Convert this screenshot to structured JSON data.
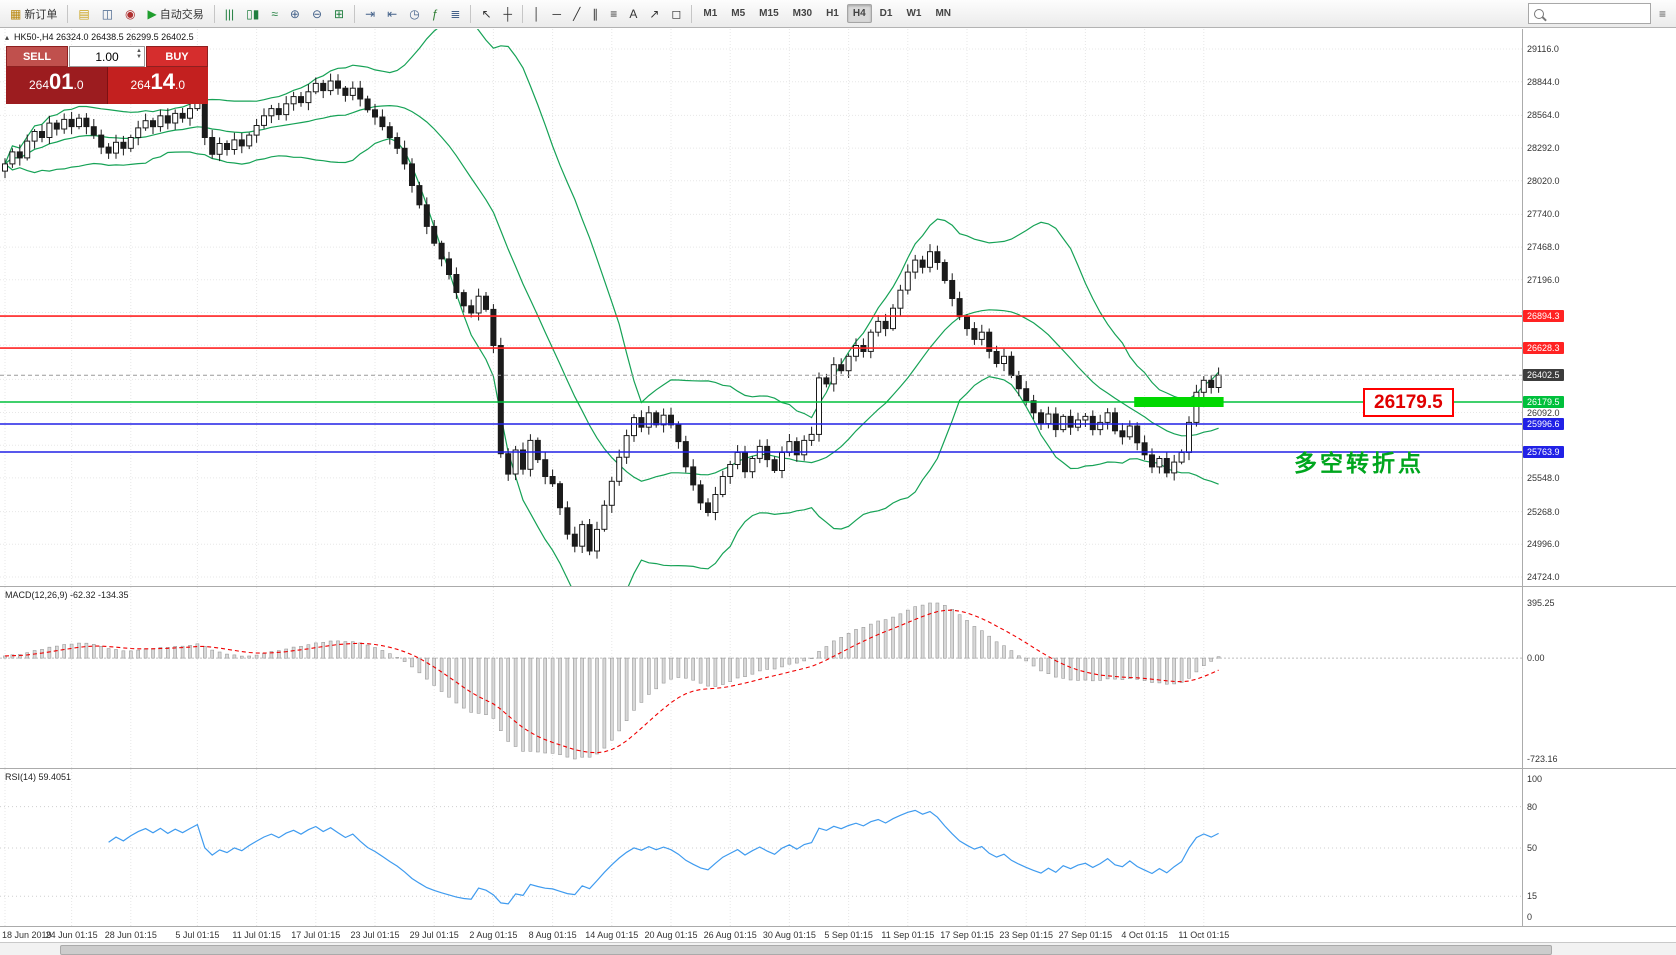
{
  "toolbar": {
    "groups": [
      {
        "items": [
          {
            "name": "new-order-button",
            "glyph": "▦",
            "label": "新订单",
            "color": "#b8860b"
          }
        ]
      },
      {
        "items": [
          {
            "name": "open-chart-icon",
            "glyph": "▤",
            "color": "#caa21a"
          },
          {
            "name": "profiles-icon",
            "glyph": "◫",
            "color": "#44628a"
          },
          {
            "name": "community-icon",
            "glyph": "◉",
            "color": "#b03030"
          },
          {
            "name": "auto-trading-button",
            "glyph": "▶",
            "label": "自动交易",
            "color": "#1f9e2e"
          }
        ]
      },
      {
        "items": [
          {
            "name": "bar-chart-type-icon",
            "glyph": "|||",
            "color": "#1f7e3e"
          },
          {
            "name": "candlestick-type-icon",
            "glyph": "▯▮",
            "color": "#1f7e3e"
          },
          {
            "name": "line-chart-type-icon",
            "glyph": "≈",
            "color": "#1f7e3e"
          },
          {
            "name": "zoom-in-icon",
            "glyph": "⊕",
            "color": "#44628a"
          },
          {
            "name": "zoom-out-icon",
            "glyph": "⊖",
            "color": "#44628a"
          },
          {
            "name": "tile-windows-icon",
            "glyph": "⊞",
            "color": "#1f7e3e"
          }
        ]
      },
      {
        "items": [
          {
            "name": "auto-scroll-icon",
            "glyph": "⇥",
            "color": "#44628a"
          },
          {
            "name": "chart-shift-icon",
            "glyph": "⇤",
            "color": "#44628a"
          },
          {
            "name": "clock-icon",
            "glyph": "◷",
            "color": "#44628a"
          },
          {
            "name": "indicators-icon",
            "glyph": "ƒ",
            "color": "#2e7d32"
          },
          {
            "name": "objects-list-icon",
            "glyph": "≣",
            "color": "#44628a"
          }
        ]
      },
      {
        "items": [
          {
            "name": "cursor-icon",
            "glyph": "↖",
            "color": "#333333"
          },
          {
            "name": "crosshair-icon",
            "glyph": "┼",
            "color": "#333333"
          }
        ]
      },
      {
        "items": [
          {
            "name": "vertical-line-icon",
            "glyph": "│",
            "color": "#333333"
          },
          {
            "name": "horizontal-line-icon",
            "glyph": "─",
            "color": "#333333"
          },
          {
            "name": "trendline-icon",
            "glyph": "╱",
            "color": "#333333"
          },
          {
            "name": "channel-icon",
            "glyph": "∥",
            "color": "#333333"
          },
          {
            "name": "fibonacci-icon",
            "glyph": "≡",
            "color": "#333333"
          },
          {
            "name": "text-icon",
            "glyph": "A",
            "color": "#333333"
          },
          {
            "name": "arrow-object-icon",
            "glyph": "↗",
            "color": "#333333"
          },
          {
            "name": "shapes-icon",
            "glyph": "◻",
            "color": "#333333"
          }
        ]
      },
      {
        "items": [
          {
            "name": "timeframe-m1",
            "label": "M1",
            "tf": true
          },
          {
            "name": "timeframe-m5",
            "label": "M5",
            "tf": true
          },
          {
            "name": "timeframe-m15",
            "label": "M15",
            "tf": true
          },
          {
            "name": "timeframe-m30",
            "label": "M30",
            "tf": true
          },
          {
            "name": "timeframe-h1",
            "label": "H1",
            "tf": true
          },
          {
            "name": "timeframe-h4",
            "label": "H4",
            "tf": true,
            "active": true
          },
          {
            "name": "timeframe-d1",
            "label": "D1",
            "tf": true
          },
          {
            "name": "timeframe-w1",
            "label": "W1",
            "tf": true
          },
          {
            "name": "timeframe-mn",
            "label": "MN",
            "tf": true
          }
        ]
      }
    ]
  },
  "symbol_bar": {
    "text": "HK50-,H4 26324.0 26438.5 26299.5 26402.5"
  },
  "trade_panel": {
    "sell_label": "SELL",
    "buy_label": "BUY",
    "volume": "1.00",
    "sell_price": "26401.0",
    "buy_price": "26414.0"
  },
  "annotations": {
    "price_callout": "26179.5",
    "cn_note": "多空转折点",
    "cn_note_color": "#00a61e"
  },
  "chart_data": {
    "type": "candlestick",
    "symbol": "HK50-",
    "timeframe": "H4",
    "current_price": 26402.5,
    "ohlc_display": {
      "open": "26324.0",
      "high": "26438.5",
      "low": "26299.5",
      "close": "26402.5"
    },
    "closes": [
      28160,
      28260,
      28210,
      28350,
      28430,
      28380,
      28500,
      28450,
      28530,
      28470,
      28540,
      28470,
      28400,
      28300,
      28250,
      28340,
      28290,
      28380,
      28460,
      28520,
      28470,
      28560,
      28500,
      28580,
      28540,
      28620,
      28700,
      28380,
      28240,
      28330,
      28280,
      28360,
      28310,
      28400,
      28480,
      28560,
      28620,
      28570,
      28660,
      28720,
      28670,
      28760,
      28830,
      28770,
      28850,
      28790,
      28730,
      28790,
      28700,
      28610,
      28550,
      28470,
      28380,
      28290,
      28160,
      27980,
      27820,
      27640,
      27500,
      27370,
      27240,
      27090,
      26980,
      26920,
      27060,
      26950,
      26650,
      25750,
      25580,
      25780,
      25620,
      25860,
      25700,
      25560,
      25500,
      25300,
      25080,
      24980,
      25160,
      24940,
      25120,
      25320,
      25520,
      25720,
      25900,
      26050,
      25970,
      26090,
      25990,
      26070,
      25990,
      25850,
      25640,
      25490,
      25340,
      25260,
      25410,
      25560,
      25660,
      25760,
      25600,
      25710,
      25810,
      25700,
      25610,
      25760,
      25850,
      25740,
      25860,
      25910,
      26380,
      26330,
      26490,
      26440,
      26560,
      26650,
      26600,
      26760,
      26850,
      26790,
      26960,
      27110,
      27260,
      27360,
      27300,
      27430,
      27340,
      27190,
      27040,
      26890,
      26790,
      26700,
      26760,
      26600,
      26500,
      26560,
      26400,
      26290,
      26190,
      26090,
      26000,
      26080,
      25950,
      26060,
      25970,
      26030,
      26060,
      25950,
      26010,
      26090,
      25940,
      25890,
      25980,
      25840,
      25740,
      25640,
      25710,
      25590,
      25680,
      25760,
      26010,
      26260,
      26360,
      26300,
      26402.5
    ],
    "x_labels": [
      "18 Jun 2019",
      "24 Jun 01:15",
      "28 Jun 01:15",
      "5 Jul 01:15",
      "11 Jul 01:15",
      "17 Jul 01:15",
      "23 Jul 01:15",
      "29 Jul 01:15",
      "2 Aug 01:15",
      "8 Aug 01:15",
      "14 Aug 01:15",
      "20 Aug 01:15",
      "26 Aug 01:15",
      "30 Aug 01:15",
      "5 Sep 01:15",
      "11 Sep 01:15",
      "17 Sep 01:15",
      "23 Sep 01:15",
      "27 Sep 01:15",
      "4 Oct 01:15",
      "11 Oct 01:15"
    ],
    "x_label_indices": [
      0,
      9,
      17,
      26,
      34,
      42,
      50,
      58,
      66,
      74,
      82,
      90,
      98,
      106,
      114,
      122,
      130,
      138,
      146,
      154,
      162
    ],
    "y_axis": {
      "max": 29116,
      "min": 24724,
      "plain_labels": [
        {
          "text": "29116.0",
          "price": 29116
        },
        {
          "text": "28844.0",
          "price": 28844
        },
        {
          "text": "28564.0",
          "price": 28564
        },
        {
          "text": "28292.0",
          "price": 28292
        },
        {
          "text": "28020.0",
          "price": 28020
        },
        {
          "text": "27740.0",
          "price": 27740
        },
        {
          "text": "27468.0",
          "price": 27468
        },
        {
          "text": "27196.0",
          "price": 27196
        },
        {
          "text": "26092.0",
          "price": 26092
        },
        {
          "text": "25548.0",
          "price": 25548
        },
        {
          "text": "25268.0",
          "price": 25268
        },
        {
          "text": "24996.0",
          "price": 24996
        },
        {
          "text": "24724.0",
          "price": 24724
        }
      ],
      "grid_prices": [
        29116,
        28844,
        28564,
        28292,
        28020,
        27740,
        27468,
        27196,
        26924,
        26652,
        26368,
        26092,
        25820,
        25548,
        25268,
        24996,
        24724
      ]
    },
    "hlines": [
      {
        "price": 26894.3,
        "color": "#ff2323",
        "label": "26894.3"
      },
      {
        "price": 26628.3,
        "color": "#ff2323",
        "label": "26628.3"
      },
      {
        "price": 26179.5,
        "color": "#00c03c",
        "label": "26179.5"
      },
      {
        "price": 25996.6,
        "color": "#2121e6",
        "label": "25996.6"
      },
      {
        "price": 25763.9,
        "color": "#2121e6",
        "label": "25763.9"
      }
    ],
    "current_tag": {
      "label": "26402.5",
      "color": "#3c3c3c",
      "price": 26402.5
    },
    "highlight_rect": {
      "start_index": 153,
      "end_index": 164,
      "price": 26179.5,
      "color": "#00d800"
    },
    "bollinger": {
      "period": 20,
      "deviation": 2,
      "color": "#16a256"
    },
    "indicators": [
      {
        "name": "MACD",
        "label": "MACD(12,26,9) -62.32 -134.35",
        "axis_labels": [
          {
            "text": "395.25",
            "value": 395.25
          },
          {
            "text": "0.00",
            "value": 0
          },
          {
            "text": "-723.16",
            "value": -723.16
          }
        ],
        "range": [
          -723.16,
          395.25
        ],
        "histogram_color": "#d8d8d8",
        "histogram_stroke": "#9c9c9c",
        "signal_color": "#f00000"
      },
      {
        "name": "RSI",
        "label": "RSI(14) 59.4051",
        "value": 59.4051,
        "axis_labels": [
          {
            "text": "100",
            "value": 100
          },
          {
            "text": "80",
            "value": 80
          },
          {
            "text": "50",
            "value": 50
          },
          {
            "text": "15",
            "value": 15
          },
          {
            "text": "0",
            "value": 0
          }
        ],
        "levels": [
          80,
          50,
          15
        ],
        "line_color": "#3f9bef"
      }
    ]
  }
}
